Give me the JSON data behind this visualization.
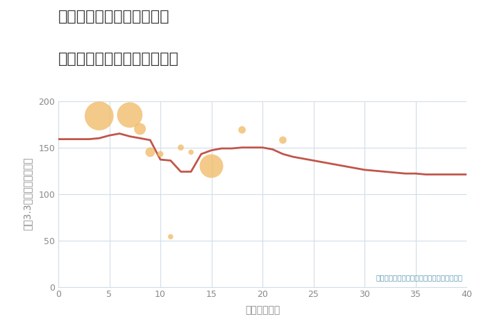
{
  "title_line1": "神奈川県横浜市中区本郷町",
  "title_line2": "築年数別中古マンション価格",
  "xlabel": "築年数（年）",
  "ylabel": "坪（3.3㎡）単価（万円）",
  "annotation": "円の大きさは、取引のあった物件面積を示す",
  "xlim": [
    0,
    40
  ],
  "ylim": [
    0,
    200
  ],
  "xticks": [
    0,
    5,
    10,
    15,
    20,
    25,
    30,
    35,
    40
  ],
  "yticks": [
    0,
    50,
    100,
    150,
    200
  ],
  "line_color": "#c0554a",
  "line_x": [
    0,
    1,
    2,
    3,
    4,
    5,
    6,
    7,
    8,
    9,
    10,
    11,
    12,
    13,
    14,
    15,
    16,
    17,
    18,
    19,
    20,
    21,
    22,
    23,
    24,
    25,
    26,
    27,
    28,
    29,
    30,
    31,
    32,
    33,
    34,
    35,
    36,
    37,
    38,
    39,
    40
  ],
  "line_y": [
    159,
    159,
    159,
    159,
    160,
    163,
    165,
    162,
    160,
    158,
    137,
    136,
    124,
    124,
    143,
    147,
    149,
    149,
    150,
    150,
    150,
    148,
    143,
    140,
    138,
    136,
    134,
    132,
    130,
    128,
    126,
    125,
    124,
    123,
    122,
    122,
    121,
    121,
    121,
    121,
    121
  ],
  "bubble_x": [
    4,
    7,
    8,
    9,
    10,
    11,
    12,
    13,
    15,
    18,
    22
  ],
  "bubble_y": [
    184,
    185,
    170,
    145,
    143,
    54,
    150,
    145,
    130,
    169,
    158
  ],
  "bubble_size": [
    900,
    700,
    150,
    100,
    40,
    30,
    40,
    30,
    600,
    60,
    60
  ],
  "bubble_color": "#f0b962",
  "bubble_alpha": 0.75,
  "title_color": "#333333",
  "axis_color": "#888888",
  "grid_color": "#d0dde8",
  "background_color": "#ffffff",
  "annotation_color": "#5a9ab0",
  "title_fontsize": 16,
  "axis_label_fontsize": 10,
  "tick_fontsize": 9
}
